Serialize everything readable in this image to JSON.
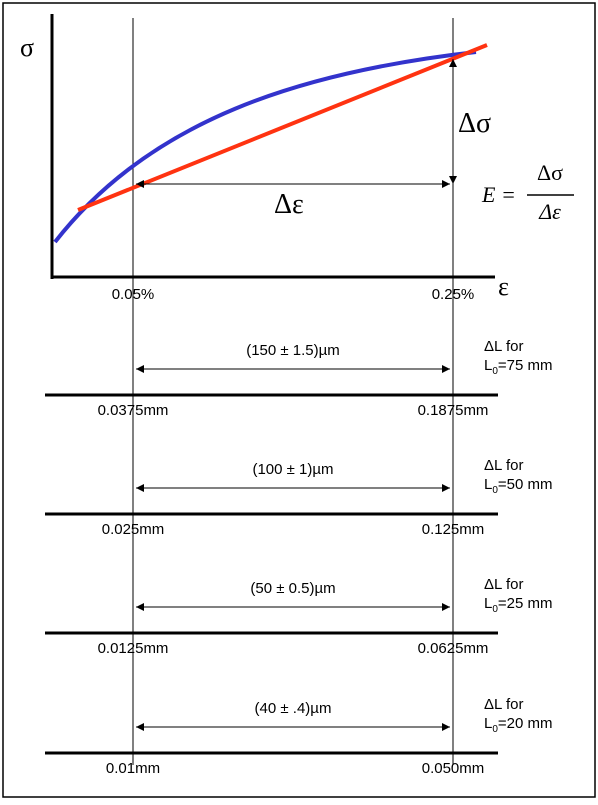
{
  "graph": {
    "y_axis_symbol": "σ",
    "x_axis_symbol": "ε",
    "delta_sigma": "Δσ",
    "delta_epsilon": "Δε",
    "formula_lhs": "E =",
    "formula_numerator": "Δσ",
    "formula_denominator": "Δε",
    "strain_start": "0.05%",
    "strain_end": "0.25%",
    "colors": {
      "curve": "#3333cc",
      "secant": "#ff3311"
    }
  },
  "scales": [
    {
      "range": "(150 ± 1.5)µm",
      "left": "0.0375mm",
      "right": "0.1875mm",
      "dl": "ΔL for",
      "l0_prefix": "L",
      "l0_sub": "0",
      "l0_suffix": "=75 mm"
    },
    {
      "range": "(100 ± 1)µm",
      "left": "0.025mm",
      "right": "0.125mm",
      "dl": "ΔL for",
      "l0_prefix": "L",
      "l0_sub": "0",
      "l0_suffix": "=50 mm"
    },
    {
      "range": "(50 ± 0.5)µm",
      "left": "0.0125mm",
      "right": "0.0625mm",
      "dl": "ΔL for",
      "l0_prefix": "L",
      "l0_sub": "0",
      "l0_suffix": "=25 mm"
    },
    {
      "range": "(40 ± .4)µm",
      "left": "0.01mm",
      "right": "0.050mm",
      "dl": "ΔL for",
      "l0_prefix": "L",
      "l0_sub": "0",
      "l0_suffix": "=20 mm"
    }
  ]
}
